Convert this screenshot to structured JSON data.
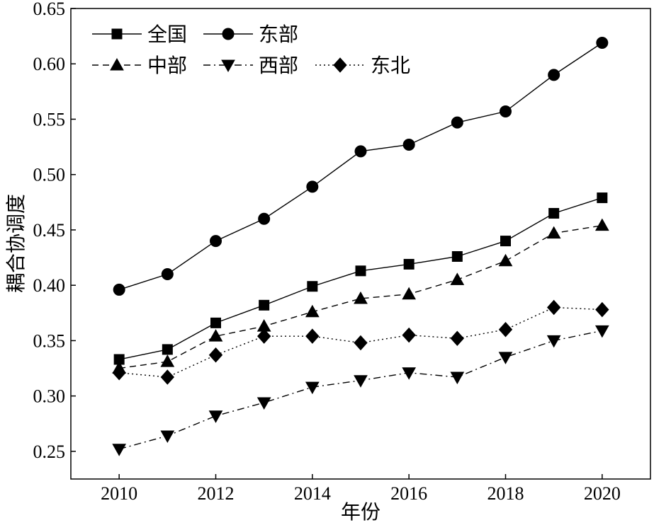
{
  "chart_data": {
    "type": "line",
    "title": "",
    "xlabel": "年份",
    "ylabel": "耦合协调度",
    "x": [
      2010,
      2011,
      2012,
      2013,
      2014,
      2015,
      2016,
      2017,
      2018,
      2019,
      2020
    ],
    "x_ticks": [
      "2010",
      "2012",
      "2014",
      "2016",
      "2018",
      "2020"
    ],
    "y_ticks": [
      "0.25",
      "0.30",
      "0.35",
      "0.40",
      "0.45",
      "0.50",
      "0.55",
      "0.60",
      "0.65"
    ],
    "xlim": [
      2009,
      2021
    ],
    "ylim": [
      0.225,
      0.65
    ],
    "grid": false,
    "legend": "top-left",
    "series": [
      {
        "name": "全国",
        "marker": "square",
        "line": "solid",
        "values": [
          0.333,
          0.342,
          0.366,
          0.382,
          0.399,
          0.413,
          0.419,
          0.426,
          0.44,
          0.465,
          0.479
        ]
      },
      {
        "name": "东部",
        "marker": "circle",
        "line": "solid",
        "values": [
          0.396,
          0.41,
          0.44,
          0.46,
          0.489,
          0.521,
          0.527,
          0.547,
          0.557,
          0.59,
          0.619
        ]
      },
      {
        "name": "中部",
        "marker": "triangle-up",
        "line": "dashed",
        "values": [
          0.325,
          0.331,
          0.354,
          0.363,
          0.376,
          0.388,
          0.392,
          0.405,
          0.422,
          0.447,
          0.454
        ]
      },
      {
        "name": "西部",
        "marker": "triangle-down",
        "line": "dashdot",
        "values": [
          0.252,
          0.264,
          0.282,
          0.294,
          0.308,
          0.314,
          0.321,
          0.317,
          0.335,
          0.35,
          0.359
        ]
      },
      {
        "name": "东北",
        "marker": "diamond",
        "line": "dotted",
        "values": [
          0.321,
          0.317,
          0.337,
          0.354,
          0.354,
          0.348,
          0.355,
          0.352,
          0.36,
          0.38,
          0.378
        ]
      }
    ]
  }
}
